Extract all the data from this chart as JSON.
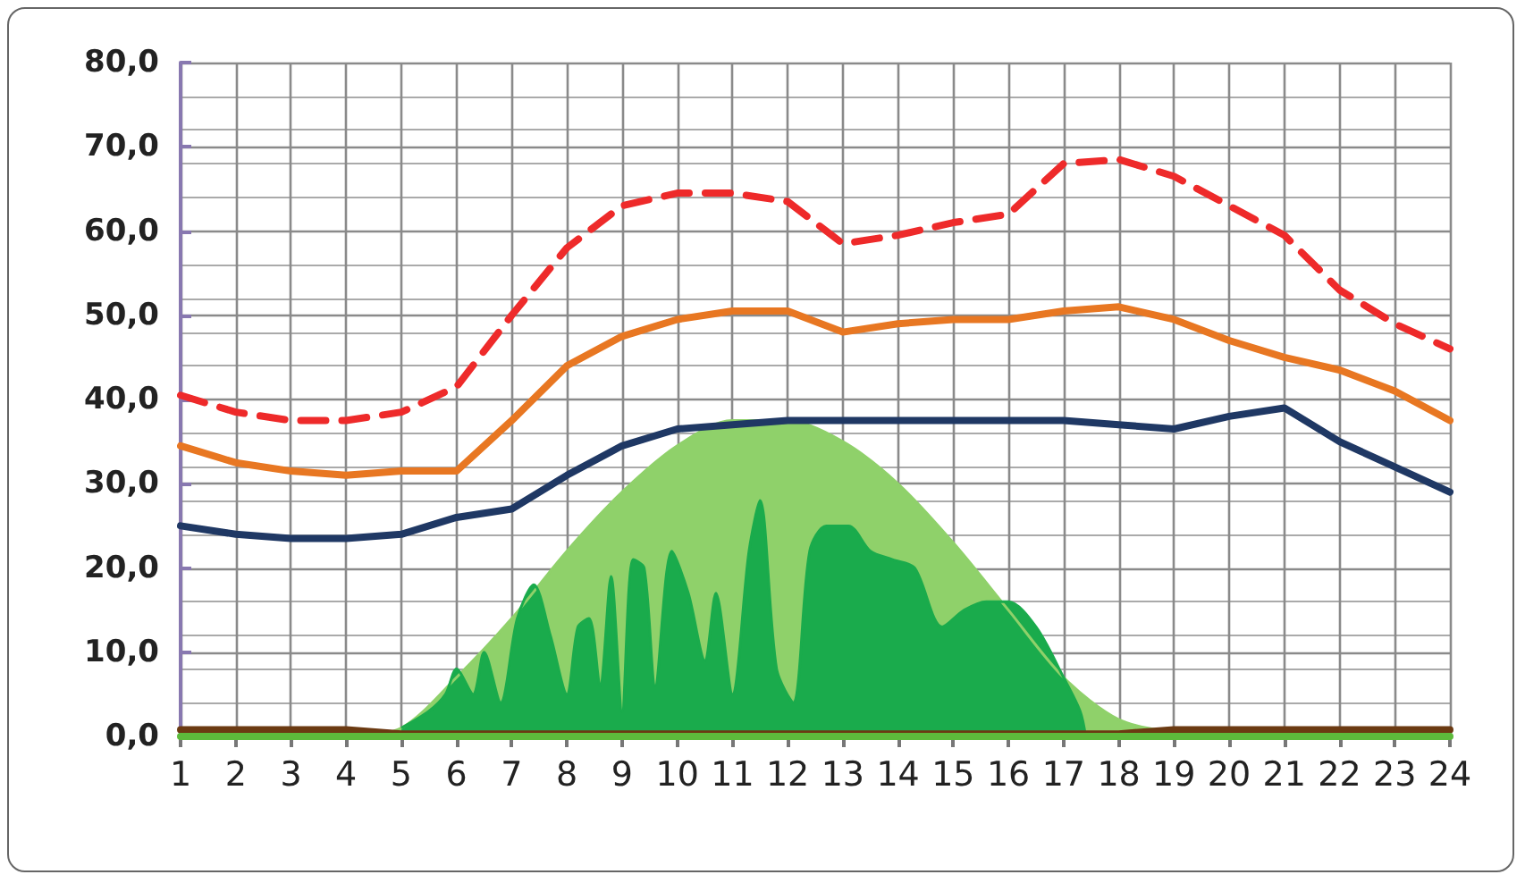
{
  "chart_data": {
    "type": "line",
    "xlim": [
      1,
      24
    ],
    "xticks": [
      1,
      2,
      3,
      4,
      5,
      6,
      7,
      8,
      9,
      10,
      11,
      12,
      13,
      14,
      15,
      16,
      17,
      18,
      19,
      20,
      21,
      22,
      23,
      24
    ],
    "ylim": [
      0,
      80
    ],
    "yticks": [
      {
        "value": 0,
        "label": "0,0"
      },
      {
        "value": 10,
        "label": "10,0"
      },
      {
        "value": 20,
        "label": "20,0"
      },
      {
        "value": 30,
        "label": "30,0"
      },
      {
        "value": 40,
        "label": "40,0"
      },
      {
        "value": 50,
        "label": "50,0"
      },
      {
        "value": 60,
        "label": "60,0"
      },
      {
        "value": 70,
        "label": "70,0"
      },
      {
        "value": 80,
        "label": "80,0"
      }
    ],
    "grid": true,
    "marker": "none",
    "series": [
      {
        "type": "area",
        "color": "#8fd16a",
        "x": [
          1,
          2,
          3,
          4,
          5,
          6,
          7,
          8,
          9,
          10,
          11,
          12,
          13,
          14,
          15,
          16,
          17,
          18,
          19,
          20,
          21,
          22,
          23,
          24
        ],
        "values": [
          0,
          0,
          0,
          0,
          1,
          7,
          14,
          22,
          29,
          34.5,
          37.5,
          37.5,
          35,
          30,
          23,
          15,
          7,
          2,
          0.5,
          0,
          0,
          0,
          0,
          0
        ]
      },
      {
        "type": "area",
        "color": "#1aab4c",
        "x": [
          5,
          5.5,
          5.8,
          6,
          6.3,
          6.5,
          6.8,
          7.1,
          7.4,
          7.7,
          8,
          8.2,
          8.4,
          8.6,
          8.8,
          9,
          9.2,
          9.4,
          9.6,
          9.9,
          10.2,
          10.5,
          10.7,
          11,
          11.3,
          11.5,
          11.8,
          12.1,
          12.4,
          12.7,
          13.1,
          13.5,
          13.9,
          14.3,
          14.8,
          15.2,
          15.6,
          16,
          16.5,
          17,
          17.3,
          17.4
        ],
        "values": [
          1,
          3,
          5,
          8,
          5,
          10,
          4,
          14,
          18,
          12,
          5,
          13,
          14,
          6,
          19,
          3,
          21,
          20,
          6,
          22,
          17,
          9,
          17,
          5,
          22,
          28,
          8,
          4,
          22,
          25,
          25,
          22,
          21,
          20,
          13,
          15,
          16,
          16,
          13,
          7,
          3,
          0
        ]
      },
      {
        "color": "#6b3a12",
        "x": [
          1,
          2,
          3,
          4,
          5,
          6,
          7,
          8,
          9,
          10,
          11,
          12,
          13,
          14,
          15,
          16,
          17,
          18,
          19,
          20,
          21,
          22,
          23,
          24
        ],
        "values": [
          0.8,
          0.8,
          0.8,
          0.8,
          0.3,
          0.3,
          0.3,
          0.3,
          0.3,
          0.3,
          0.3,
          0.3,
          0.3,
          0.3,
          0.3,
          0.3,
          0.3,
          0.3,
          0.8,
          0.8,
          0.8,
          0.8,
          0.8,
          0.8
        ]
      },
      {
        "color": "#5dba3b",
        "x": [
          1,
          2,
          3,
          4,
          5,
          6,
          7,
          8,
          9,
          10,
          11,
          12,
          13,
          14,
          15,
          16,
          17,
          18,
          19,
          20,
          21,
          22,
          23,
          24
        ],
        "values": [
          0,
          0,
          0,
          0,
          0,
          0,
          0,
          0,
          0,
          0,
          0,
          0,
          0,
          0,
          0,
          0,
          0,
          0,
          0,
          0,
          0,
          0,
          0,
          0
        ]
      },
      {
        "color": "#1f3864",
        "x": [
          1,
          2,
          3,
          4,
          5,
          6,
          7,
          8,
          9,
          10,
          11,
          12,
          13,
          14,
          15,
          16,
          17,
          18,
          19,
          20,
          21,
          22,
          23,
          24
        ],
        "values": [
          25,
          24,
          23.5,
          23.5,
          24,
          26,
          27,
          31,
          34.5,
          36.5,
          37,
          37.5,
          37.5,
          37.5,
          37.5,
          37.5,
          37.5,
          37,
          36.5,
          38,
          39,
          35,
          32,
          29
        ]
      },
      {
        "color": "#e87722",
        "x": [
          1,
          2,
          3,
          4,
          5,
          6,
          7,
          8,
          9,
          10,
          11,
          12,
          13,
          14,
          15,
          16,
          17,
          18,
          19,
          20,
          21,
          22,
          23,
          24
        ],
        "values": [
          34.5,
          32.5,
          31.5,
          31,
          31.5,
          31.5,
          37.5,
          44,
          47.5,
          49.5,
          50.5,
          50.5,
          48,
          49,
          49.5,
          49.5,
          50.5,
          51,
          49.5,
          47,
          45,
          43.5,
          41,
          37.5
        ]
      },
      {
        "line_style": "dashed",
        "color": "#ee2a2a",
        "x": [
          1,
          2,
          3,
          4,
          5,
          6,
          7,
          8,
          9,
          10,
          11,
          12,
          13,
          14,
          15,
          16,
          17,
          18,
          19,
          20,
          21,
          22,
          23,
          24
        ],
        "values": [
          40.5,
          38.5,
          37.5,
          37.5,
          38.5,
          41.5,
          50,
          58,
          63,
          64.5,
          64.5,
          63.5,
          58.5,
          59.5,
          61,
          62,
          68,
          68.5,
          66.5,
          63,
          59.5,
          53,
          49,
          46
        ]
      }
    ]
  }
}
